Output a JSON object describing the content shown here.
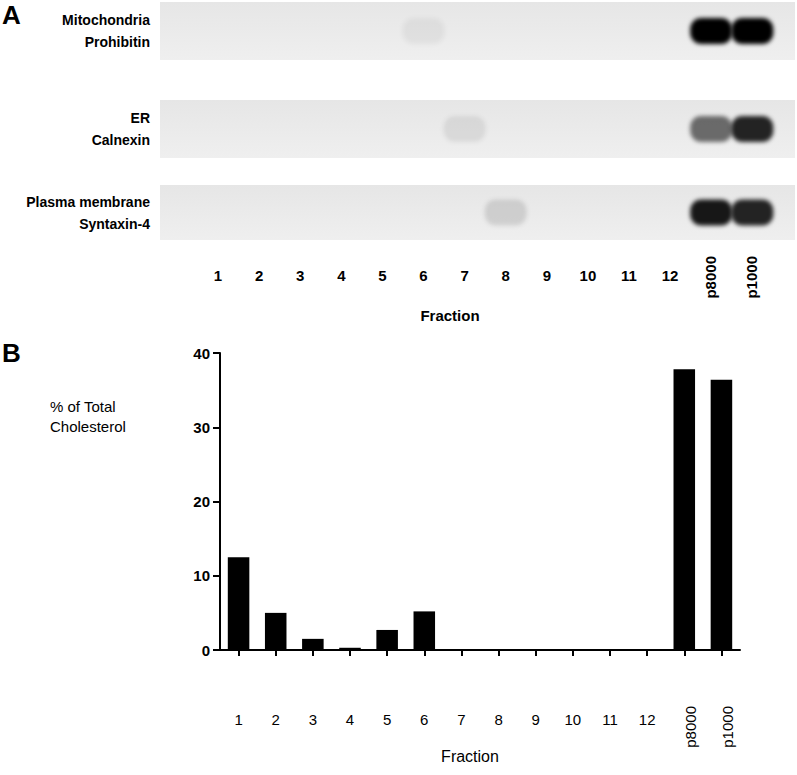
{
  "chart_data": [
    {
      "type": "blot",
      "panel": "A",
      "categories": [
        "1",
        "2",
        "3",
        "4",
        "5",
        "6",
        "7",
        "8",
        "9",
        "10",
        "11",
        "12",
        "p8000",
        "p1000"
      ],
      "xlabel": "Fraction",
      "rows": [
        {
          "labels": [
            "Mitochondria",
            "Prohibitin"
          ],
          "bands": [
            0,
            0,
            0,
            0,
            0,
            0.05,
            0,
            0,
            0,
            0,
            0,
            0,
            1,
            1
          ]
        },
        {
          "labels": [
            "ER",
            "Calnexin"
          ],
          "bands": [
            0,
            0,
            0,
            0,
            0,
            0,
            0.08,
            0,
            0,
            0,
            0,
            0,
            0.55,
            0.85
          ]
        },
        {
          "labels": [
            "Plasma membrane",
            "Syntaxin-4"
          ],
          "bands": [
            0,
            0,
            0,
            0,
            0,
            0,
            0,
            0.12,
            0,
            0,
            0,
            0,
            0.9,
            0.85
          ]
        }
      ]
    },
    {
      "type": "bar",
      "panel": "B",
      "categories": [
        "1",
        "2",
        "3",
        "4",
        "5",
        "6",
        "7",
        "8",
        "9",
        "10",
        "11",
        "12",
        "p8000",
        "p1000"
      ],
      "values": [
        12.5,
        5,
        1.5,
        0.3,
        2.7,
        5.2,
        0,
        0,
        0,
        0,
        0,
        0,
        37.8,
        36.4
      ],
      "color": "#000000",
      "xlabel": "Fraction",
      "ylabel": "% of Total\nCholesterol",
      "ylim": [
        0,
        40
      ],
      "yticks": [
        0,
        10,
        20,
        30,
        40
      ],
      "grid": false
    }
  ]
}
